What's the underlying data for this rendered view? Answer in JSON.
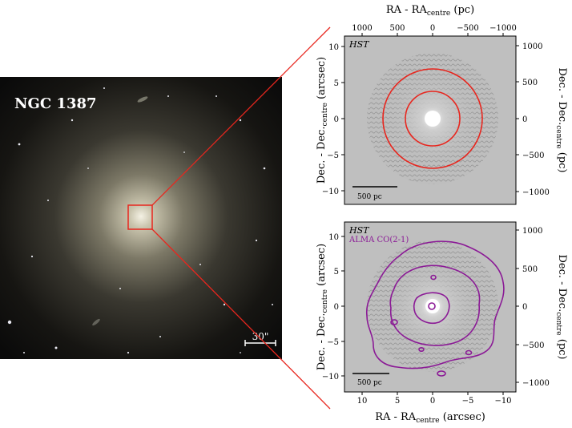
{
  "galaxy": {
    "name": "NGC 1387",
    "scale_bar_label": "30\""
  },
  "top_panel": {
    "image_label": "HST",
    "top_axis_label": "RA - RA",
    "top_axis_sub": "centre",
    "top_axis_unit": " (pc)",
    "top_ticks": [
      "1000",
      "500",
      "0",
      "−500",
      "−1000"
    ],
    "left_axis_label": "Dec. - Dec.",
    "left_axis_sub": "centre",
    "left_axis_unit": " (arcsec)",
    "left_ticks": [
      "10",
      "5",
      "0",
      "−5",
      "−10"
    ],
    "right_axis_label": "Dec. - Dec.",
    "right_axis_sub": "centre",
    "right_axis_unit": " (pc)",
    "right_ticks": [
      "1000",
      "500",
      "0",
      "−500",
      "−1000"
    ],
    "scale_bar_label": "500 pc",
    "ring_color": "#e8261e"
  },
  "bottom_panel": {
    "image_label": "HST",
    "contour_label": "ALMA CO(2-1)",
    "contour_color": "#8b1a96",
    "bottom_axis_label": "RA - RA",
    "bottom_axis_sub": "centre",
    "bottom_axis_unit": " (arcsec)",
    "bottom_ticks": [
      "10",
      "5",
      "0",
      "−5",
      "−10"
    ],
    "left_axis_label": "Dec. - Dec.",
    "left_axis_sub": "centre",
    "left_axis_unit": " (arcsec)",
    "left_ticks": [
      "10",
      "5",
      "0",
      "−5",
      "−10"
    ],
    "right_axis_label": "Dec. - Dec.",
    "right_axis_sub": "centre",
    "right_axis_unit": " (pc)",
    "right_ticks": [
      "1000",
      "500",
      "0",
      "−500",
      "−1000"
    ],
    "scale_bar_label": "500 pc"
  },
  "zoom_line_color": "#e8261e"
}
